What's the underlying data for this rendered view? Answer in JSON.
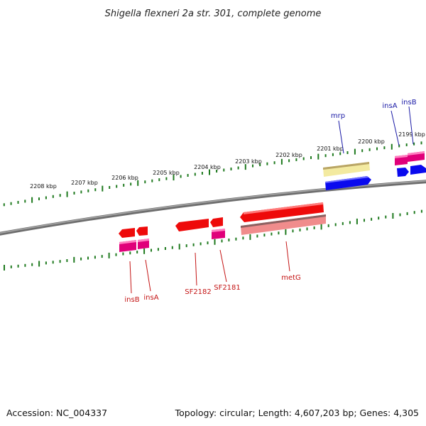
{
  "title": "Shigella flexneri 2a str. 301, complete genome",
  "footer": {
    "accession": "Accession: NC_004337",
    "summary": "Topology: circular; Length: 4,607,203 bp; Genes: 4,305"
  },
  "scale_labels": [
    "2208 kbp",
    "2207 kbp",
    "2206 kbp",
    "2205 kbp",
    "2204 kbp",
    "2203 kbp",
    "2202 kbp",
    "2201 kbp",
    "2200 kbp",
    "2199 kbp"
  ],
  "genes_top": [
    "mrp",
    "insA",
    "insB"
  ],
  "genes_bottom": [
    "insB",
    "insA",
    "SF2182",
    "SF2181",
    "metG"
  ],
  "colors": {
    "backbone": "#808080",
    "tick": "#1f7a1f",
    "cds_forward": "#0a0aee",
    "cds_reverse": "#ee0a0a",
    "gene_pink": "#e0007a",
    "gene_tan": "#f3eaa0",
    "gene_salmon": "#f08c8c",
    "label_top": "#1a1aa6",
    "label_bottom": "#c41414"
  }
}
